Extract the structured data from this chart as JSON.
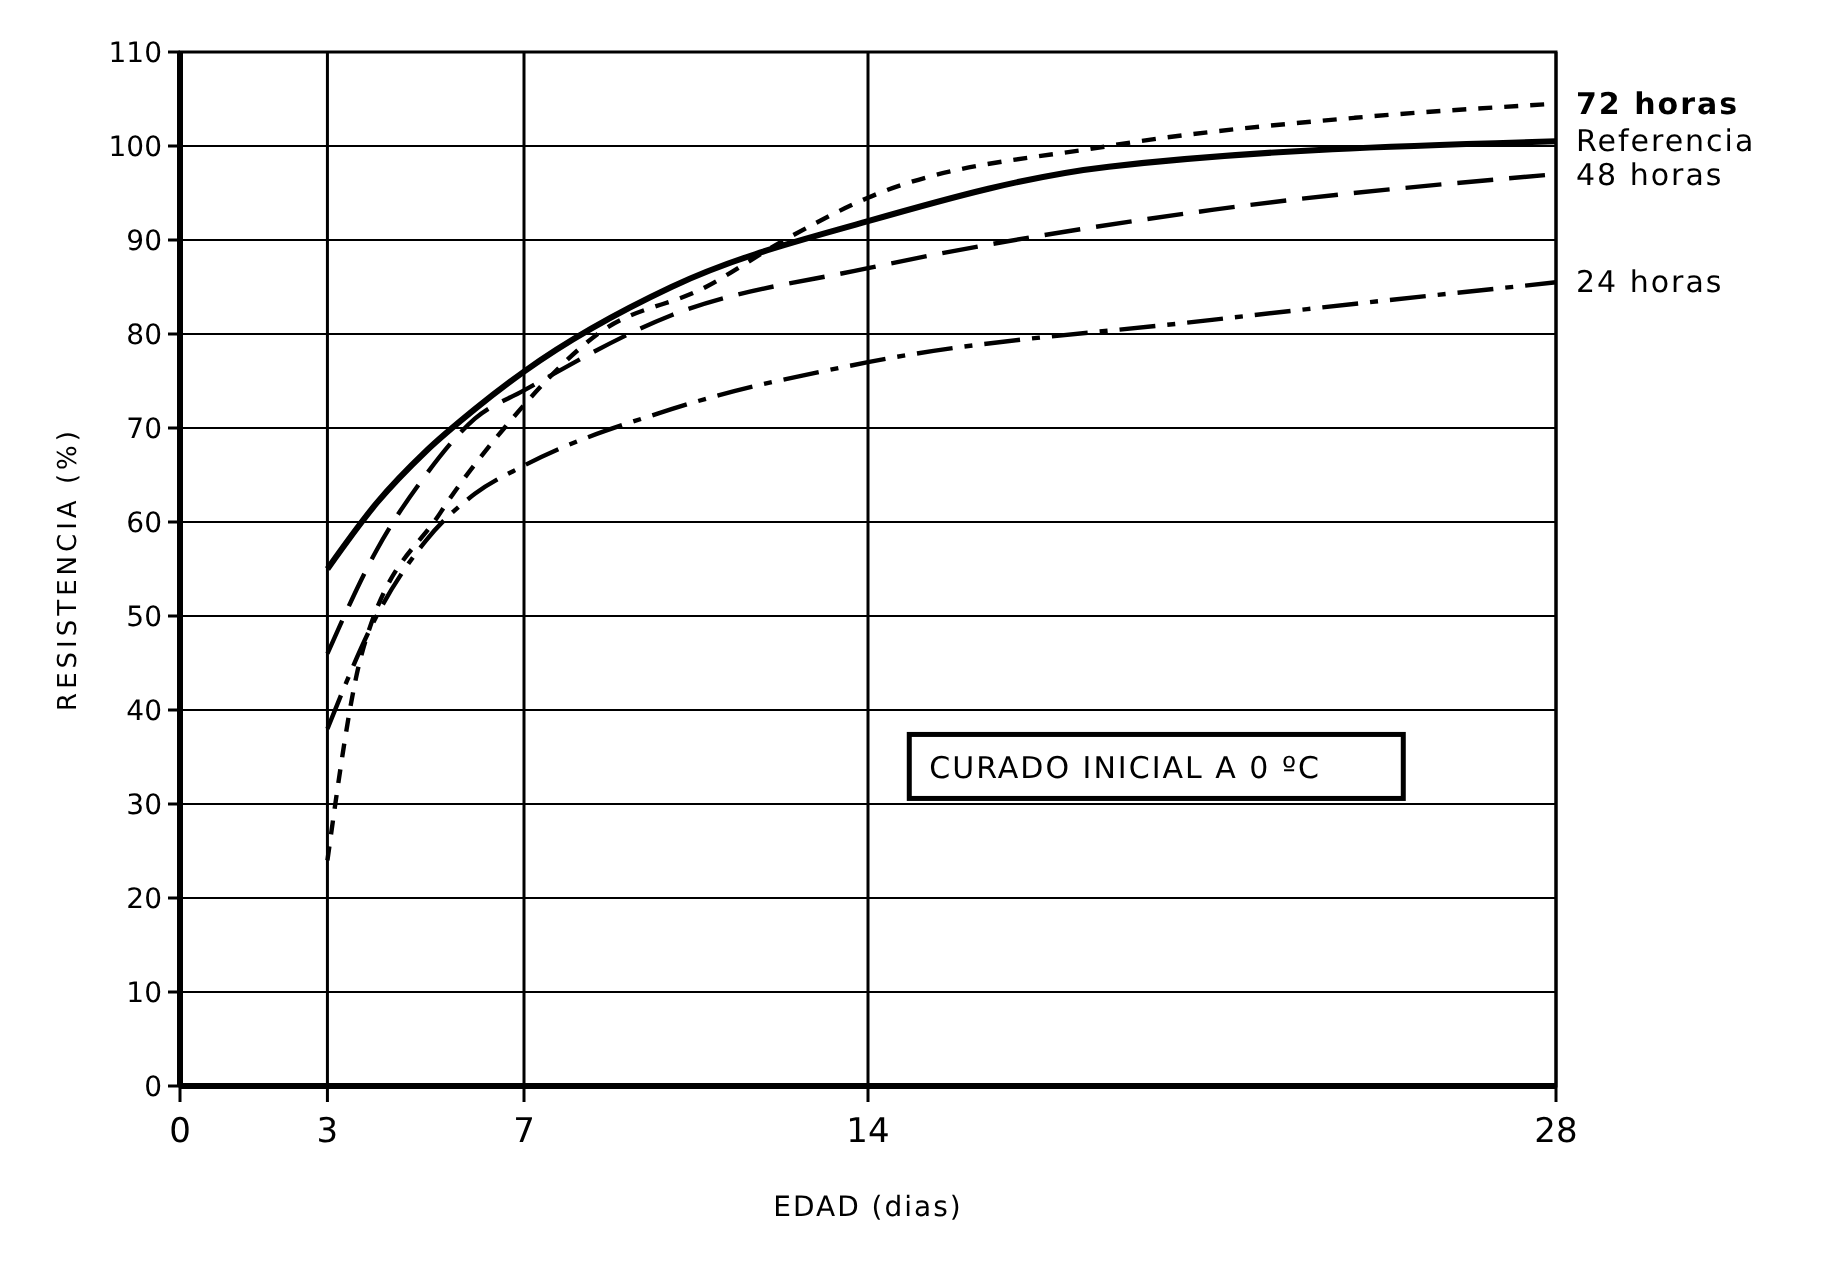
{
  "chart_data": {
    "type": "line",
    "xlabel": "EDAD  (dias)",
    "ylabel": "RESISTENCIA  (%)",
    "xlim": [
      0,
      28
    ],
    "xticks": [
      0,
      3,
      7,
      14,
      28
    ],
    "ylim": [
      0,
      110
    ],
    "yticks": [
      0,
      10,
      20,
      30,
      40,
      50,
      60,
      70,
      80,
      90,
      100,
      110
    ],
    "grid": true,
    "legend": false,
    "annotations": [
      "CURADO INICIAL A 0 ºC"
    ],
    "series": [
      {
        "name": "72 horas",
        "color": "#000000",
        "line_style": "dashed",
        "x": [
          3,
          3.7,
          5.3,
          6.6,
          8.5,
          10.7,
          12.3,
          14,
          18.9,
          23.9,
          28
        ],
        "values": [
          24,
          46,
          61,
          70,
          80,
          85,
          90,
          94.5,
          100,
          103,
          104.5
        ]
      },
      {
        "name": "Referencia",
        "color": "#000000",
        "line_style": "solid",
        "x": [
          3,
          4,
          5,
          6,
          7,
          10,
          14,
          18.9,
          28
        ],
        "values": [
          55,
          62,
          67.5,
          72,
          76,
          85,
          92,
          97.8,
          100.5
        ]
      },
      {
        "name": "48 horas",
        "color": "#000000",
        "line_style": "dashed",
        "x": [
          3,
          4,
          5,
          6,
          7,
          10,
          14,
          21,
          28
        ],
        "values": [
          46,
          57,
          65,
          71,
          74,
          82,
          87,
          93.2,
          97
        ]
      },
      {
        "name": "24 horas",
        "color": "#000000",
        "line_style": "dashed",
        "x": [
          3,
          4,
          5,
          6,
          7,
          10,
          14,
          21,
          28
        ],
        "values": [
          38,
          50,
          58,
          63,
          66,
          72,
          77,
          81.5,
          85.5
        ]
      }
    ]
  }
}
